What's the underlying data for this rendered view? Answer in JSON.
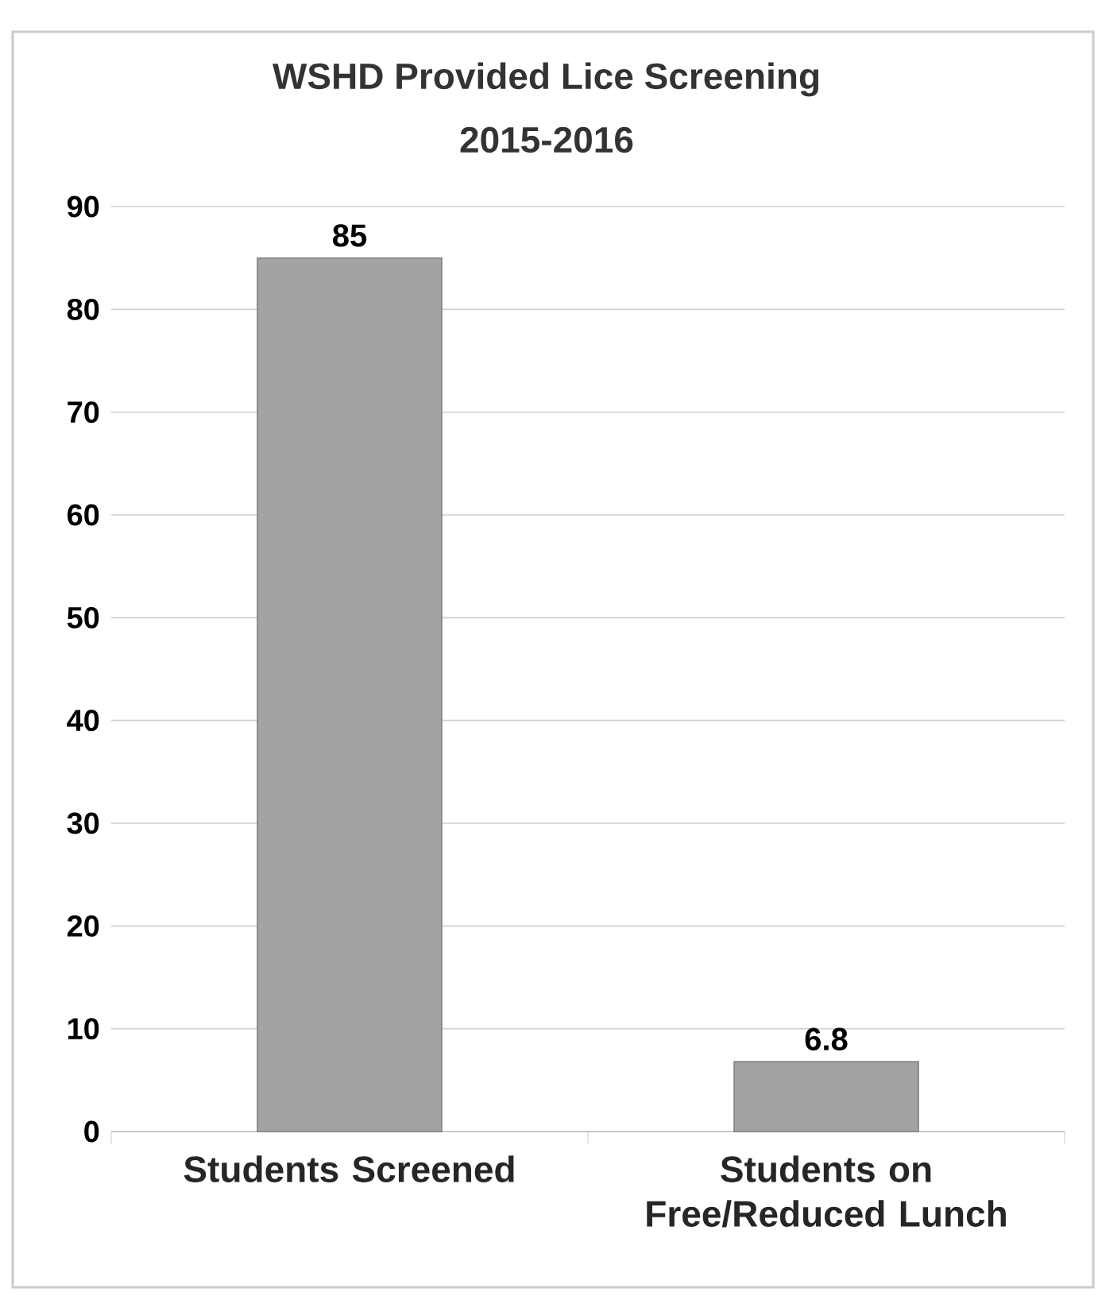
{
  "chart_data": {
    "type": "bar",
    "title": "WSHD Provided Lice Screening",
    "subtitle": "2015-2016",
    "categories": [
      "Students Screened",
      "Students on Free/Reduced Lunch"
    ],
    "values": [
      85,
      6.8
    ],
    "color": "#a3a3a3",
    "ylim": [
      0,
      90
    ],
    "yticks": [
      0,
      10,
      20,
      30,
      40,
      50,
      60,
      70,
      80,
      90
    ],
    "grid": "y",
    "data_labels": true
  }
}
